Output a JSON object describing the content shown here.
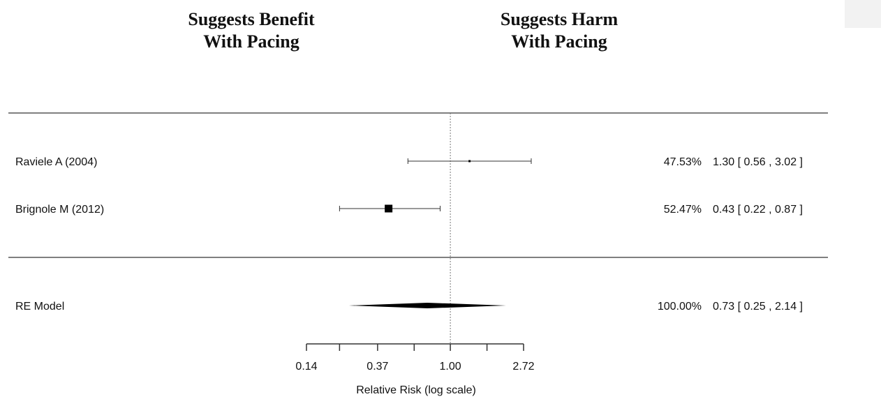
{
  "header": {
    "benefit_line1": "Suggests Benefit",
    "benefit_line2": "With Pacing",
    "harm_line1": "Suggests Harm",
    "harm_line2": "With Pacing"
  },
  "chart_data": {
    "type": "forest",
    "scale": "log",
    "xlabel": "Relative Risk (log scale)",
    "reference_value": 1.0,
    "xlim": [
      0.14,
      2.72
    ],
    "ticks": [
      {
        "value": 0.14,
        "label": "0.14"
      },
      {
        "value": 0.22,
        "label": ""
      },
      {
        "value": 0.37,
        "label": "0.37"
      },
      {
        "value": 0.61,
        "label": ""
      },
      {
        "value": 1.0,
        "label": "1.00"
      },
      {
        "value": 1.65,
        "label": ""
      },
      {
        "value": 2.72,
        "label": "2.72"
      }
    ],
    "studies": [
      {
        "name": "Raviele A (2004)",
        "weight": "47.53%",
        "estimate": 1.3,
        "ci": [
          0.56,
          3.02
        ],
        "summary": "1.30 [ 0.56 , 3.02 ]"
      },
      {
        "name": "Brignole M (2012)",
        "weight": "52.47%",
        "estimate": 0.43,
        "ci": [
          0.22,
          0.87
        ],
        "summary": "0.43 [ 0.22 , 0.87 ]"
      }
    ],
    "pooled": {
      "name": "RE Model",
      "weight": "100.00%",
      "estimate": 0.73,
      "ci": [
        0.25,
        2.14
      ],
      "summary": "0.73 [ 0.25 , 2.14 ]"
    }
  }
}
